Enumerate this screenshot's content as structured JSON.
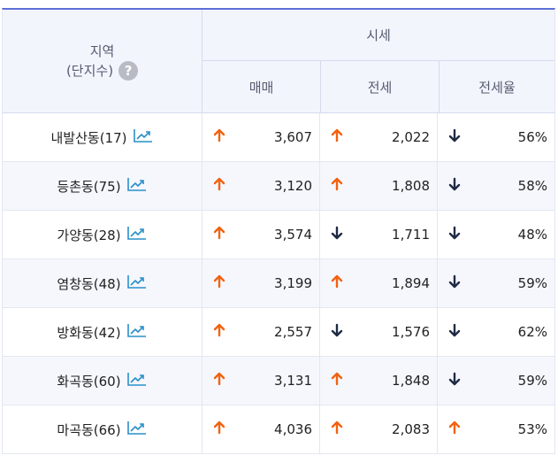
{
  "header": {
    "region_label": "지역",
    "region_sub": "(단지수)",
    "price_label": "시세",
    "sale_label": "매매",
    "jeonse_label": "전세",
    "ratio_label": "전세율"
  },
  "colors": {
    "up": "#f2620f",
    "down": "#1f2a44",
    "accent": "#5d6fd9",
    "chart_icon": "#2a8fc9"
  },
  "rows": [
    {
      "name": "내발산동(17)",
      "sale": "3,607",
      "sale_dir": "up",
      "jeonse": "2,022",
      "jeonse_dir": "up",
      "ratio": "56%",
      "ratio_dir": "down"
    },
    {
      "name": "등촌동(75)",
      "sale": "3,120",
      "sale_dir": "up",
      "jeonse": "1,808",
      "jeonse_dir": "up",
      "ratio": "58%",
      "ratio_dir": "down"
    },
    {
      "name": "가양동(28)",
      "sale": "3,574",
      "sale_dir": "up",
      "jeonse": "1,711",
      "jeonse_dir": "down",
      "ratio": "48%",
      "ratio_dir": "down"
    },
    {
      "name": "염창동(48)",
      "sale": "3,199",
      "sale_dir": "up",
      "jeonse": "1,894",
      "jeonse_dir": "up",
      "ratio": "59%",
      "ratio_dir": "down"
    },
    {
      "name": "방화동(42)",
      "sale": "2,557",
      "sale_dir": "up",
      "jeonse": "1,576",
      "jeonse_dir": "down",
      "ratio": "62%",
      "ratio_dir": "down"
    },
    {
      "name": "화곡동(60)",
      "sale": "3,131",
      "sale_dir": "up",
      "jeonse": "1,848",
      "jeonse_dir": "up",
      "ratio": "59%",
      "ratio_dir": "down"
    },
    {
      "name": "마곡동(66)",
      "sale": "4,036",
      "sale_dir": "up",
      "jeonse": "2,083",
      "jeonse_dir": "up",
      "ratio": "53%",
      "ratio_dir": "up"
    }
  ]
}
